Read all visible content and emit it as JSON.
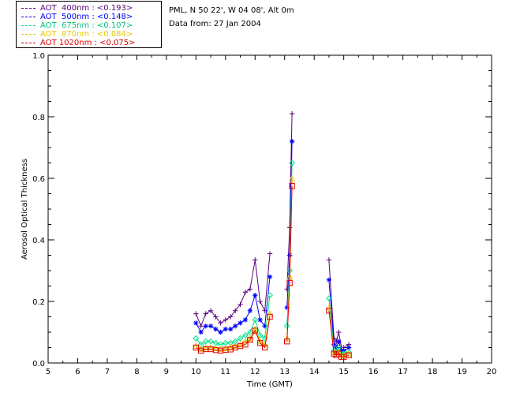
{
  "header": {
    "site": "PML, N 50 22', W 04 08', Alt 0m",
    "data_from": "Data from: 27 Jan 2004"
  },
  "chart_data": {
    "type": "line",
    "xlabel": "Time (GMT)",
    "ylabel": "Aerosol Optical Thickness",
    "xlim": [
      5,
      20
    ],
    "ylim": [
      0,
      1.0
    ],
    "xticks": [
      "5",
      "6",
      "7",
      "8",
      "9",
      "10",
      "11",
      "12",
      "13",
      "14",
      "15",
      "16",
      "17",
      "18",
      "19",
      "20"
    ],
    "yticks": [
      "0.0",
      "0.2",
      "0.4",
      "0.6",
      "0.8",
      "1.0"
    ],
    "series": [
      {
        "name": "AOT  400nm",
        "legend": "AOT  400nm : <0.193>",
        "color": "#5a007a",
        "marker": "plus",
        "segments": [
          [
            [
              10.0,
              0.16
            ],
            [
              10.17,
              0.12
            ],
            [
              10.33,
              0.16
            ],
            [
              10.5,
              0.17
            ],
            [
              10.67,
              0.15
            ],
            [
              10.83,
              0.13
            ],
            [
              11.0,
              0.14
            ],
            [
              11.17,
              0.15
            ],
            [
              11.33,
              0.17
            ],
            [
              11.5,
              0.19
            ],
            [
              11.67,
              0.23
            ],
            [
              11.83,
              0.24
            ],
            [
              12.0,
              0.335
            ],
            [
              12.17,
              0.2
            ],
            [
              12.33,
              0.17
            ],
            [
              12.5,
              0.355
            ]
          ],
          [
            [
              13.08,
              0.24
            ],
            [
              13.17,
              0.44
            ],
            [
              13.25,
              0.81
            ]
          ],
          [
            [
              14.5,
              0.335
            ],
            [
              14.67,
              0.08
            ],
            [
              14.75,
              0.07
            ],
            [
              14.83,
              0.1
            ],
            [
              14.92,
              0.05
            ],
            [
              15.0,
              0.05
            ],
            [
              15.17,
              0.06
            ]
          ]
        ]
      },
      {
        "name": "AOT  500nm",
        "legend": "AOT  500nm : <0.148>",
        "color": "#0000ff",
        "marker": "star",
        "segments": [
          [
            [
              10.0,
              0.13
            ],
            [
              10.17,
              0.1
            ],
            [
              10.33,
              0.12
            ],
            [
              10.5,
              0.12
            ],
            [
              10.67,
              0.11
            ],
            [
              10.83,
              0.1
            ],
            [
              11.0,
              0.11
            ],
            [
              11.17,
              0.11
            ],
            [
              11.33,
              0.12
            ],
            [
              11.5,
              0.13
            ],
            [
              11.67,
              0.14
            ],
            [
              11.83,
              0.17
            ],
            [
              12.0,
              0.22
            ],
            [
              12.17,
              0.14
            ],
            [
              12.33,
              0.12
            ],
            [
              12.5,
              0.28
            ]
          ],
          [
            [
              13.08,
              0.18
            ],
            [
              13.17,
              0.35
            ],
            [
              13.25,
              0.72
            ]
          ],
          [
            [
              14.5,
              0.27
            ],
            [
              14.67,
              0.06
            ],
            [
              14.75,
              0.05
            ],
            [
              14.83,
              0.07
            ],
            [
              14.92,
              0.04
            ],
            [
              15.0,
              0.04
            ],
            [
              15.17,
              0.05
            ]
          ]
        ]
      },
      {
        "name": "AOT  675nm",
        "legend": "AOT  675nm : <0.107>",
        "color": "#00e08a",
        "marker": "diamond",
        "segments": [
          [
            [
              10.0,
              0.08
            ],
            [
              10.17,
              0.06
            ],
            [
              10.33,
              0.07
            ],
            [
              10.5,
              0.07
            ],
            [
              10.67,
              0.065
            ],
            [
              10.83,
              0.06
            ],
            [
              11.0,
              0.065
            ],
            [
              11.17,
              0.065
            ],
            [
              11.33,
              0.07
            ],
            [
              11.5,
              0.08
            ],
            [
              11.67,
              0.09
            ],
            [
              11.83,
              0.1
            ],
            [
              12.0,
              0.14
            ],
            [
              12.17,
              0.09
            ],
            [
              12.33,
              0.08
            ],
            [
              12.5,
              0.22
            ]
          ],
          [
            [
              13.08,
              0.12
            ],
            [
              13.17,
              0.3
            ],
            [
              13.25,
              0.65
            ]
          ],
          [
            [
              14.5,
              0.21
            ],
            [
              14.67,
              0.04
            ],
            [
              14.75,
              0.035
            ],
            [
              14.83,
              0.05
            ],
            [
              14.92,
              0.03
            ],
            [
              15.0,
              0.03
            ],
            [
              15.17,
              0.035
            ]
          ]
        ]
      },
      {
        "name": "AOT  870nm",
        "legend": "AOT  870nm : <0.084>",
        "color": "#e8c800",
        "marker": "triangle",
        "segments": [
          [
            [
              10.0,
              0.055
            ],
            [
              10.17,
              0.045
            ],
            [
              10.33,
              0.05
            ],
            [
              10.5,
              0.05
            ],
            [
              10.67,
              0.048
            ],
            [
              10.83,
              0.045
            ],
            [
              11.0,
              0.048
            ],
            [
              11.17,
              0.05
            ],
            [
              11.33,
              0.055
            ],
            [
              11.5,
              0.06
            ],
            [
              11.67,
              0.07
            ],
            [
              11.83,
              0.08
            ],
            [
              12.0,
              0.11
            ],
            [
              12.17,
              0.07
            ],
            [
              12.33,
              0.06
            ],
            [
              12.5,
              0.16
            ]
          ],
          [
            [
              13.08,
              0.08
            ],
            [
              13.17,
              0.28
            ],
            [
              13.25,
              0.6
            ]
          ],
          [
            [
              14.5,
              0.18
            ],
            [
              14.67,
              0.035
            ],
            [
              14.75,
              0.03
            ],
            [
              14.83,
              0.035
            ],
            [
              14.92,
              0.025
            ],
            [
              15.0,
              0.025
            ],
            [
              15.17,
              0.03
            ]
          ]
        ]
      },
      {
        "name": "AOT 1020nm",
        "legend": "AOT 1020nm : <0.075>",
        "color": "#e00000",
        "marker": "square",
        "segments": [
          [
            [
              10.0,
              0.05
            ],
            [
              10.17,
              0.04
            ],
            [
              10.33,
              0.045
            ],
            [
              10.5,
              0.045
            ],
            [
              10.67,
              0.042
            ],
            [
              10.83,
              0.04
            ],
            [
              11.0,
              0.043
            ],
            [
              11.17,
              0.044
            ],
            [
              11.33,
              0.05
            ],
            [
              11.5,
              0.055
            ],
            [
              11.67,
              0.06
            ],
            [
              11.83,
              0.075
            ],
            [
              12.0,
              0.105
            ],
            [
              12.17,
              0.065
            ],
            [
              12.33,
              0.05
            ],
            [
              12.5,
              0.15
            ]
          ],
          [
            [
              13.08,
              0.07
            ],
            [
              13.17,
              0.26
            ],
            [
              13.25,
              0.575
            ]
          ],
          [
            [
              14.5,
              0.17
            ],
            [
              14.67,
              0.03
            ],
            [
              14.75,
              0.025
            ],
            [
              14.83,
              0.03
            ],
            [
              14.92,
              0.02
            ],
            [
              15.0,
              0.02
            ],
            [
              15.17,
              0.025
            ]
          ]
        ]
      }
    ]
  }
}
